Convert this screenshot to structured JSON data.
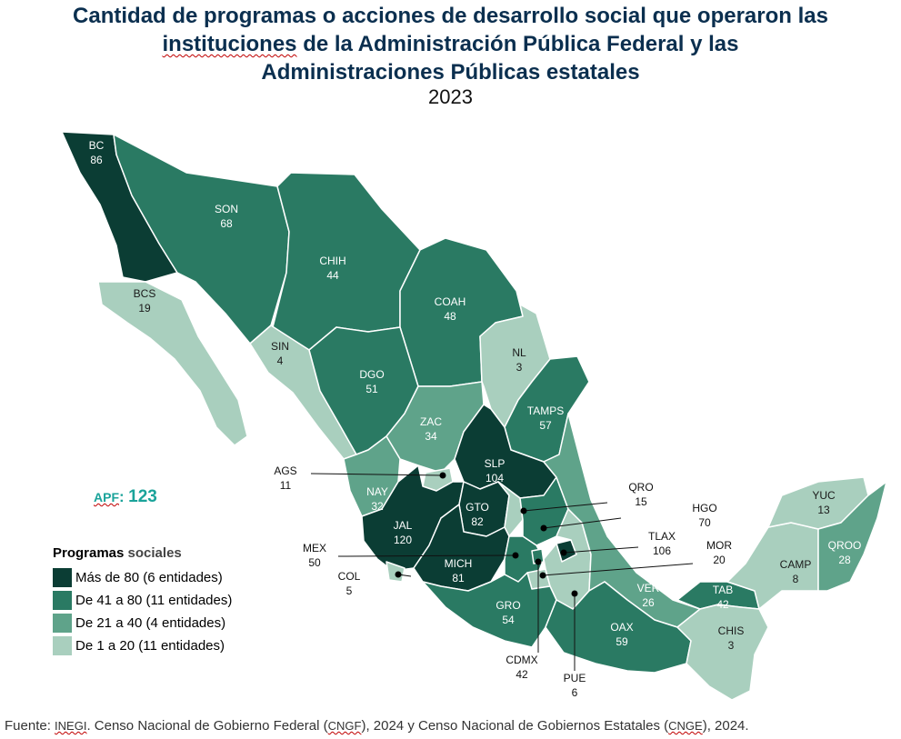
{
  "title": {
    "line1": "Cantidad de programas o acciones de desarrollo social que operaron las",
    "line2_a": "instituciones",
    "line2_b": " de la Administración Pública Federal y las",
    "line3": "Administraciones Públicas estatales",
    "year": "2023"
  },
  "apf": {
    "label": "APF",
    "colon": ":",
    "value": "123"
  },
  "legend": {
    "title_a": "Programas",
    "title_b": " sociales",
    "items": [
      {
        "label": "Más de 80 (6 entidades)",
        "color": "#0b3d34"
      },
      {
        "label": "De 41 a 80 (11 entidades)",
        "color": "#2a7a63"
      },
      {
        "label": "De 21 a 40 (4 entidades)",
        "color": "#5fa38a"
      },
      {
        "label": "De 1 a 20 (11 entidades)",
        "color": "#a9cfbe"
      }
    ]
  },
  "colors": {
    "c1": "#0b3d34",
    "c2": "#2a7a63",
    "c3": "#5fa38a",
    "c4": "#a9cfbe",
    "border": "#ffffff",
    "title": "#0b2f4f",
    "apf": "#1aa39a"
  },
  "states": {
    "BC": {
      "abbr": "BC",
      "value": "86"
    },
    "SON": {
      "abbr": "SON",
      "value": "68"
    },
    "CHIH": {
      "abbr": "CHIH",
      "value": "44"
    },
    "COAH": {
      "abbr": "COAH",
      "value": "48"
    },
    "BCS": {
      "abbr": "BCS",
      "value": "19"
    },
    "SIN": {
      "abbr": "SIN",
      "value": "4"
    },
    "DGO": {
      "abbr": "DGO",
      "value": "51"
    },
    "NL": {
      "abbr": "NL",
      "value": "3"
    },
    "TAMPS": {
      "abbr": "TAMPS",
      "value": "57"
    },
    "ZAC": {
      "abbr": "ZAC",
      "value": "34"
    },
    "SLP": {
      "abbr": "SLP",
      "value": "104"
    },
    "AGS": {
      "abbr": "AGS",
      "value": "11"
    },
    "NAY": {
      "abbr": "NAY",
      "value": "32"
    },
    "GTO": {
      "abbr": "GTO",
      "value": "82"
    },
    "QRO": {
      "abbr": "QRO",
      "value": "15"
    },
    "HGO": {
      "abbr": "HGO",
      "value": "70"
    },
    "JAL": {
      "abbr": "JAL",
      "value": "120"
    },
    "MEX": {
      "abbr": "MEX",
      "value": "50"
    },
    "TLAX": {
      "abbr": "TLAX",
      "value": "106"
    },
    "MOR": {
      "abbr": "MOR",
      "value": "20"
    },
    "COL": {
      "abbr": "COL",
      "value": "5"
    },
    "MICH": {
      "abbr": "MICH",
      "value": "81"
    },
    "GRO": {
      "abbr": "GRO",
      "value": "54"
    },
    "CDMX": {
      "abbr": "CDMX",
      "value": "42"
    },
    "PUE": {
      "abbr": "PUE",
      "value": "6"
    },
    "VER": {
      "abbr": "VER",
      "value": "26"
    },
    "OAX": {
      "abbr": "OAX",
      "value": "59"
    },
    "TAB": {
      "abbr": "TAB",
      "value": "42"
    },
    "CHIS": {
      "abbr": "CHIS",
      "value": "3"
    },
    "CAMP": {
      "abbr": "CAMP",
      "value": "8"
    },
    "YUC": {
      "abbr": "YUC",
      "value": "13"
    },
    "QROO": {
      "abbr": "QROO",
      "value": "28"
    }
  },
  "source": {
    "prefix": "Fuente: ",
    "inegi": "INEGI",
    "part1": ". Censo Nacional de Gobierno Federal (",
    "cngf": "CNGF",
    "part2": "), 2024 y Censo Nacional de Gobiernos Estatales (",
    "cnge": "CNGE",
    "part3": "), 2024."
  }
}
